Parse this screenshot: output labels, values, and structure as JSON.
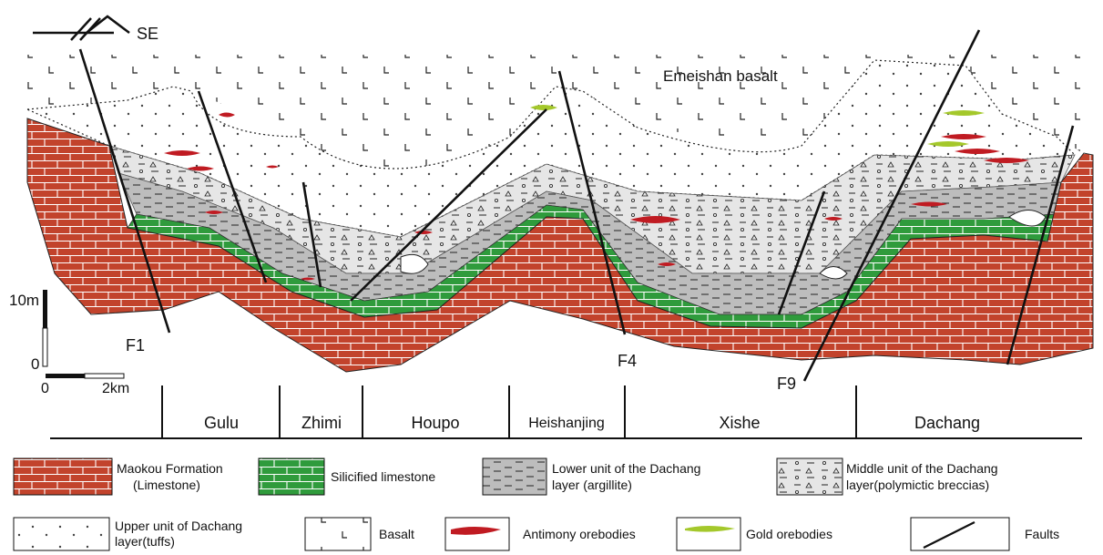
{
  "orientation": {
    "label": "SE"
  },
  "section": {
    "basalt_label": "Emeishan basalt"
  },
  "faults": [
    {
      "label": "F1"
    },
    {
      "label": "F4"
    },
    {
      "label": "F9"
    }
  ],
  "scales": {
    "vertical": {
      "top_label": "10m",
      "bottom_label": "0"
    },
    "horizontal": {
      "left_label": "0",
      "right_label": "2km"
    }
  },
  "localities": [
    {
      "label": "Gulu"
    },
    {
      "label": "Zhimi"
    },
    {
      "label": "Houpo"
    },
    {
      "label": "Heishanjing"
    },
    {
      "label": "Xishe"
    },
    {
      "label": "Dachang"
    }
  ],
  "legend": {
    "maokou_line1": "Maokou Formation",
    "maokou_line2": "(Limestone)",
    "silicified": "Silicified limestone",
    "lower_line1": "Lower unit of the Dachang",
    "lower_line2": "layer (argillite)",
    "middle_line1": "Middle unit of the Dachang",
    "middle_line2": "layer(polymictic breccias)",
    "upper_line1": "Upper unit of Dachang",
    "upper_line2": "layer(tuffs)",
    "basalt": "Basalt",
    "antimony": "Antimony orebodies",
    "gold": "Gold orebodies",
    "faults": "Faults"
  },
  "colors": {
    "limestone": "#c2432c",
    "silicified": "#2f9b3c",
    "argillite": "#bdbdbd",
    "breccia": "#e6e6e6",
    "tuff": "#ffffff",
    "antimony": "#c01b22",
    "gold": "#a4c82b"
  }
}
